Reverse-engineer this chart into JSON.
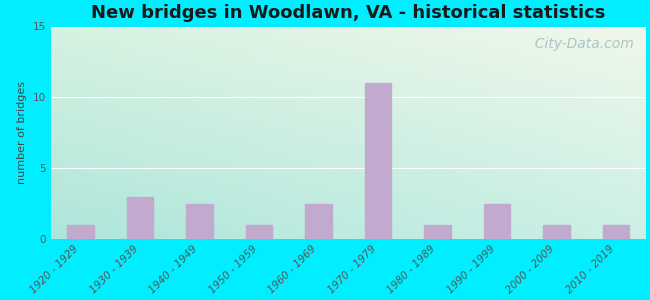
{
  "title": "New bridges in Woodlawn, VA - historical statistics",
  "ylabel": "number of bridges",
  "categories": [
    "1920 - 1929",
    "1930 - 1939",
    "1940 - 1949",
    "1950 - 1959",
    "1960 - 1969",
    "1970 - 1979",
    "1980 - 1989",
    "1990 - 1999",
    "2000 - 2009",
    "2010 - 2019"
  ],
  "values": [
    1,
    3,
    2.5,
    1,
    2.5,
    11,
    1,
    2.5,
    1,
    1
  ],
  "bar_color": "#c2aacf",
  "ylim": [
    0,
    15
  ],
  "yticks": [
    0,
    5,
    10,
    15
  ],
  "background_outer": "#00eeff",
  "bg_top_left": "#d8ede0",
  "bg_top_right": "#f0f4ec",
  "bg_bottom_left": "#aadddd",
  "bg_bottom_right": "#d8ede8",
  "grid_color": "#ffffff",
  "title_fontsize": 13,
  "title_fontweight": "bold",
  "ylabel_fontsize": 8,
  "tick_label_fontsize": 7.5,
  "watermark_text": "  City-Data.com",
  "watermark_color": "#a8bfbf",
  "watermark_fontsize": 10
}
